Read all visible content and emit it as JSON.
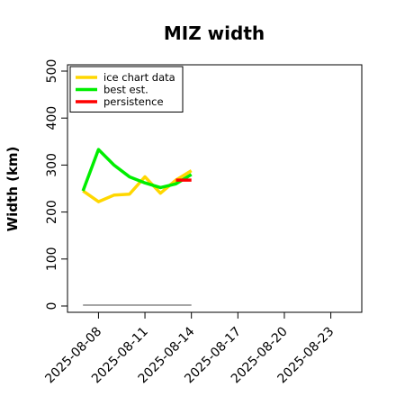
{
  "chart_data": {
    "type": "line",
    "title": "MIZ width",
    "xlabel": "",
    "ylabel": "Width (km)",
    "ylim": [
      0,
      500
    ],
    "xlim": [
      "2025-08-06",
      "2025-08-25"
    ],
    "x_ticks": [
      "2025-08-08",
      "2025-08-11",
      "2025-08-14",
      "2025-08-17",
      "2025-08-20",
      "2025-08-23"
    ],
    "y_ticks": [
      0,
      100,
      200,
      300,
      400,
      500
    ],
    "grid": false,
    "legend_position": "top-left",
    "series": [
      {
        "name": "ice chart data",
        "color": "#ffd700",
        "x": [
          "2025-08-07",
          "2025-08-08",
          "2025-08-09",
          "2025-08-10",
          "2025-08-11",
          "2025-08-12",
          "2025-08-13",
          "2025-08-14"
        ],
        "values": [
          245,
          222,
          236,
          238,
          275,
          240,
          268,
          288
        ]
      },
      {
        "name": "best est.",
        "color": "#00ee00",
        "x": [
          "2025-08-07",
          "2025-08-08",
          "2025-08-09",
          "2025-08-10",
          "2025-08-11",
          "2025-08-12",
          "2025-08-13",
          "2025-08-14"
        ],
        "values": [
          245,
          333,
          300,
          275,
          262,
          252,
          260,
          280
        ]
      },
      {
        "name": "persistence",
        "color": "#ff0000",
        "x": [
          "2025-08-13",
          "2025-08-14"
        ],
        "values": [
          268,
          268
        ]
      }
    ],
    "reference_line": {
      "color": "#888888",
      "x": [
        "2025-08-07",
        "2025-08-14"
      ],
      "values": [
        2,
        2
      ]
    }
  }
}
